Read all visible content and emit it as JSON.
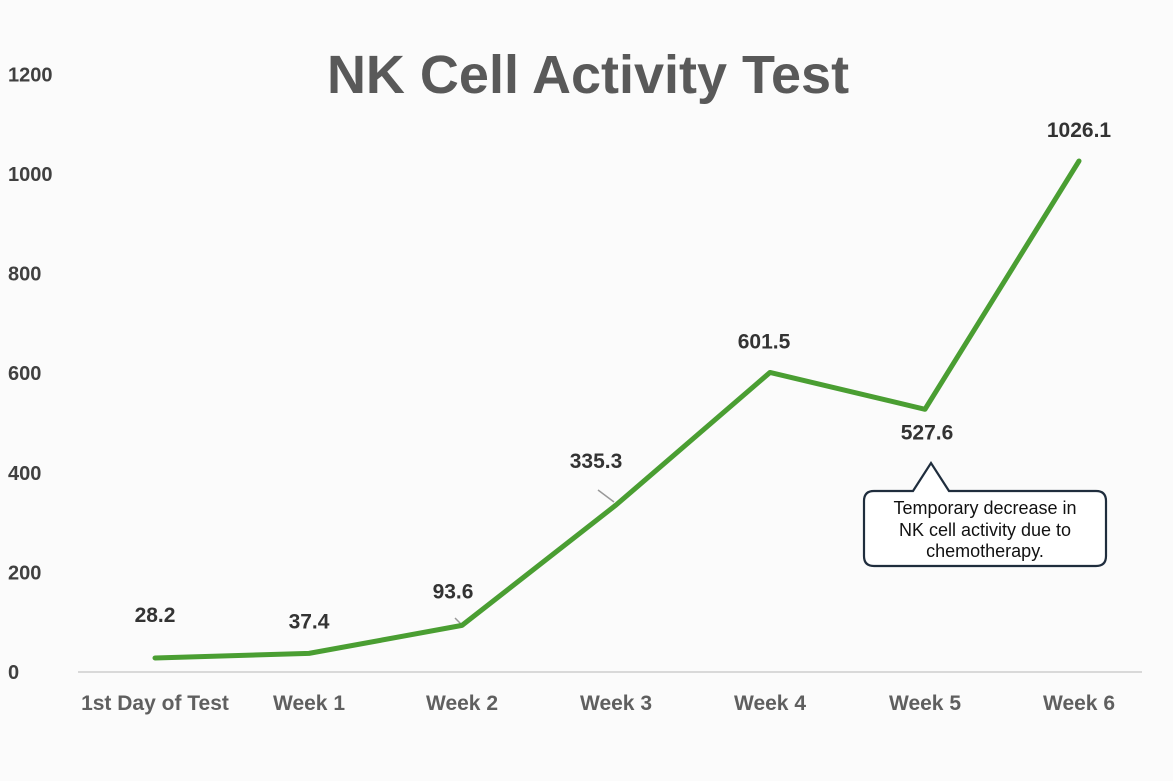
{
  "chart_data": {
    "type": "line",
    "title": "NK Cell Activity Test",
    "xlabel": "",
    "ylabel": "",
    "categories": [
      "1st Day of Test",
      "Week 1",
      "Week 2",
      "Week 3",
      "Week 4",
      "Week 5",
      "Week 6"
    ],
    "values": [
      28.2,
      37.4,
      93.6,
      335.3,
      601.5,
      527.6,
      1026.1
    ],
    "data_labels": [
      "28.2",
      "37.4",
      "93.6",
      "335.3",
      "601.5",
      "527.6",
      "1026.1"
    ],
    "yticks": [
      0,
      200,
      400,
      600,
      800,
      1000,
      1200
    ],
    "ylim": [
      0,
      1200
    ],
    "grid": false,
    "legend": "none",
    "line_color": "#4a9e32",
    "annotation": {
      "category": "Week 5",
      "lines": [
        "Temporary decrease in",
        "NK cell activity due to",
        "chemotherapy."
      ],
      "border_color": "#1f2d3d"
    }
  }
}
